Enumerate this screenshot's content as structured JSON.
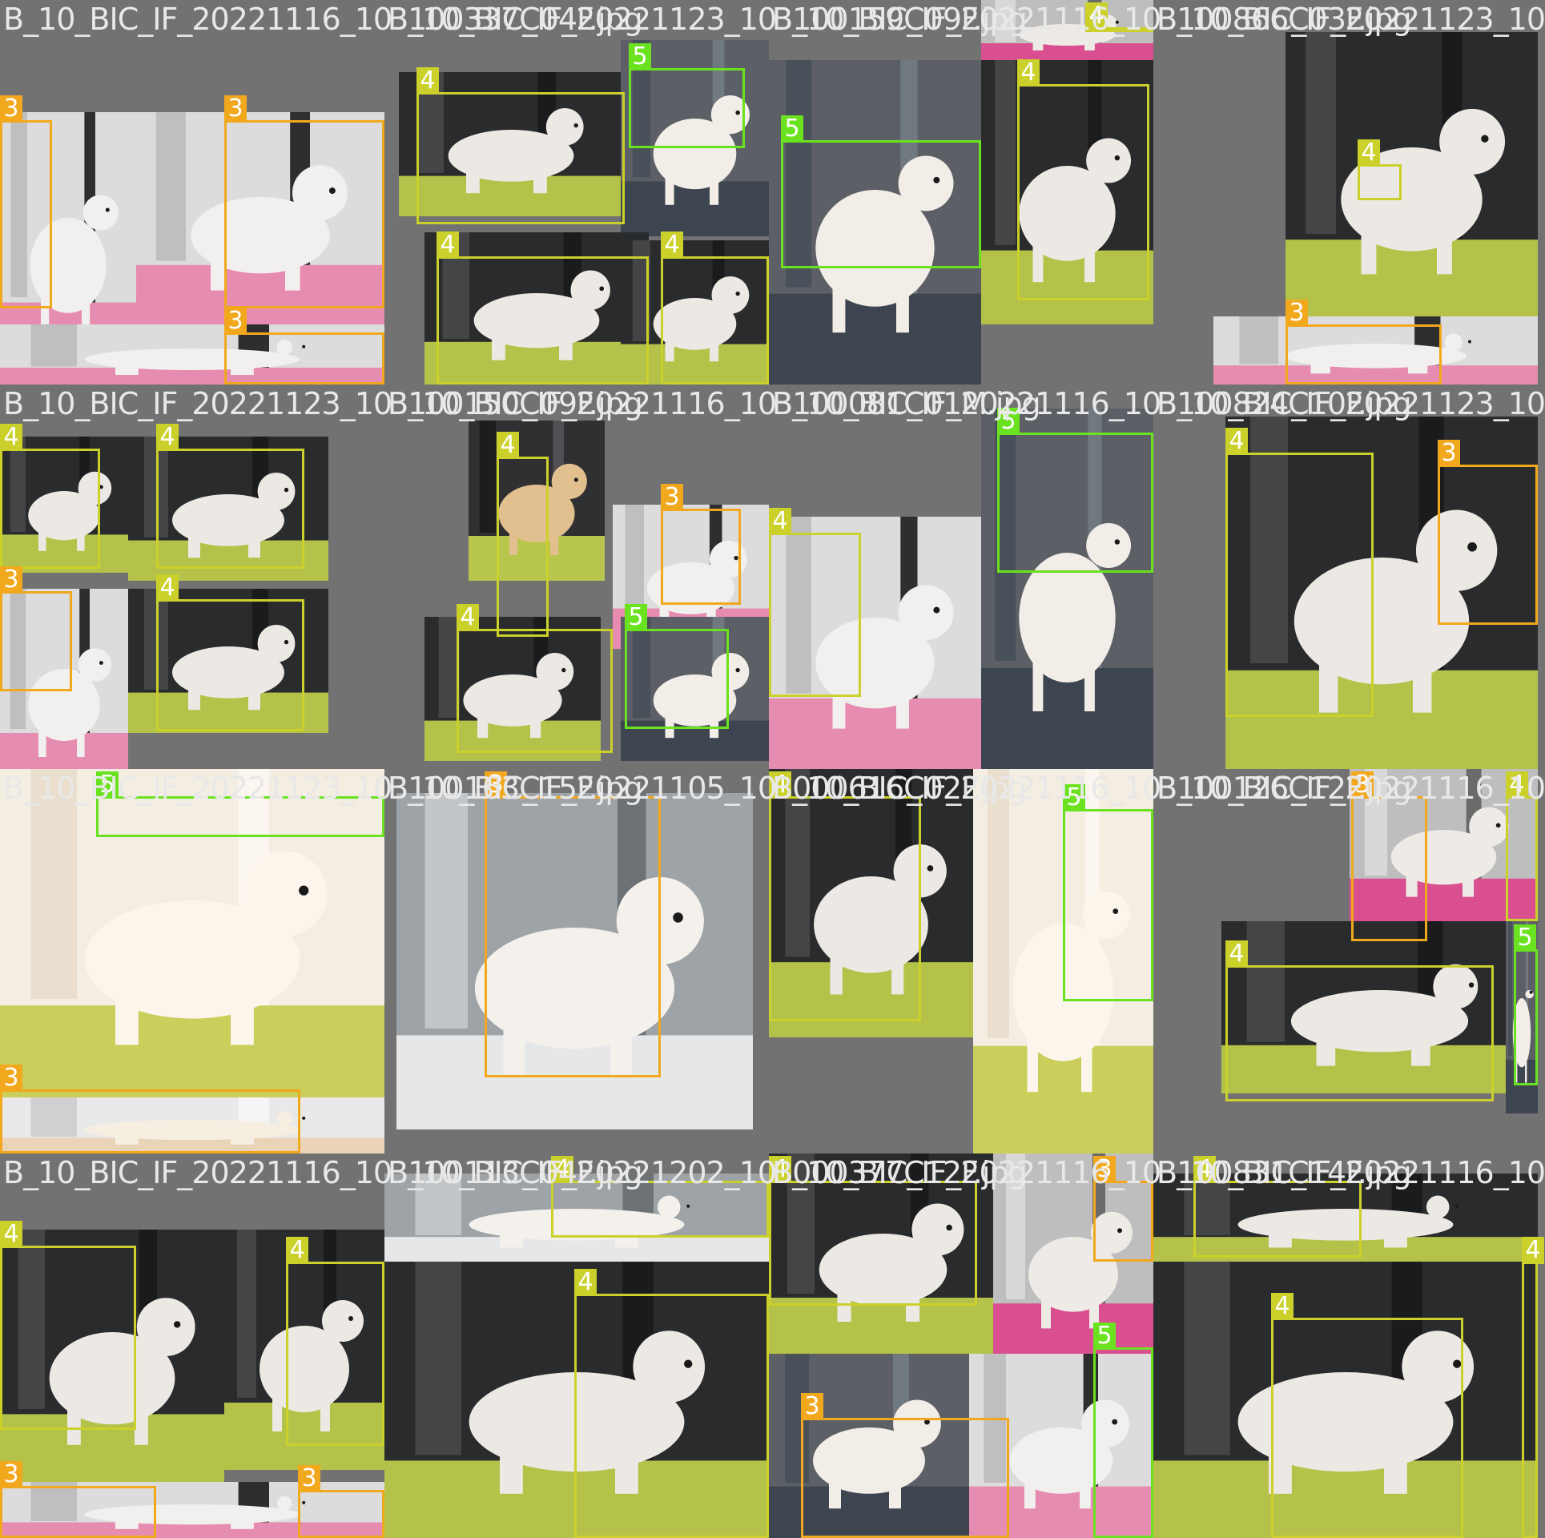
{
  "colors": {
    "background": "#727272",
    "class_3": "#f2a81d",
    "class_4": "#cbd12a",
    "class_5": "#6be21f",
    "label_text": "#e8e8e8"
  },
  "tiles": [
    {
      "filename": "B_10_BIC_IF_20221116_10",
      "photos": [
        {
          "scene": "white-pink"
        },
        {
          "scene": "white-pink"
        },
        {
          "scene": "white-pink"
        }
      ],
      "boxes": [
        {
          "cls": "3"
        },
        {
          "cls": "3"
        },
        {
          "cls": "3"
        }
      ]
    },
    {
      "filename": "B_10_BIC_IF_20221123_10",
      "overlay": "B100337C04F.jpg",
      "photos": [
        {
          "scene": "green-dark"
        },
        {
          "scene": "grey-coat"
        },
        {
          "scene": "green-dark"
        },
        {
          "scene": "green-dark"
        }
      ],
      "boxes": [
        {
          "cls": "4"
        },
        {
          "cls": "5"
        },
        {
          "cls": "4"
        },
        {
          "cls": "4"
        }
      ]
    },
    {
      "filename": "B_10_BIC_IF_20221116_10",
      "overlay": "B100159C09F.jpg",
      "photos": [
        {
          "scene": "grey-coat"
        },
        {
          "scene": "green-dark"
        },
        {
          "scene": "pink"
        }
      ],
      "boxes": [
        {
          "cls": "5"
        },
        {
          "cls": "4"
        },
        {
          "cls": "4"
        }
      ]
    },
    {
      "filename": "B_10_BIC_IF_20221123_10",
      "overlay": "B100866C03F.jpg",
      "photos": [
        {
          "scene": "green-dark"
        },
        {
          "scene": "white-pink"
        }
      ],
      "boxes": [
        {
          "cls": "4"
        },
        {
          "cls": "3"
        }
      ]
    },
    {
      "filename": "B_10_BIC_IF_20221123_10",
      "photos": [
        {
          "scene": "green-dark"
        },
        {
          "scene": "green-dark"
        },
        {
          "scene": "white-pink"
        },
        {
          "scene": "green-dark"
        }
      ],
      "boxes": [
        {
          "cls": "4"
        },
        {
          "cls": "4"
        },
        {
          "cls": "3"
        },
        {
          "cls": "4"
        }
      ]
    },
    {
      "filename": "B_10_BIC_IF_20221116_10",
      "overlay": "B100150C09F.jpg",
      "photos": [
        {
          "scene": "tan-green"
        },
        {
          "scene": "white-pink"
        },
        {
          "scene": "green-dark"
        },
        {
          "scene": "grey-coat"
        }
      ],
      "boxes": [
        {
          "cls": "4"
        },
        {
          "cls": "3"
        },
        {
          "cls": "4"
        },
        {
          "cls": "5"
        }
      ]
    },
    {
      "filename": "B_10_BIC_IF_20221116_10",
      "overlay": "B100081C01M.jpg",
      "photos": [
        {
          "scene": "white-pink"
        },
        {
          "scene": "grey-coat"
        }
      ],
      "boxes": [
        {
          "cls": "4"
        },
        {
          "cls": "5"
        }
      ]
    },
    {
      "filename": "B_10_BIC_IF_20221123_10",
      "overlay": "B100824C10F.jpg",
      "photos": [
        {
          "scene": "green-dark"
        },
        {
          "scene": "white-pink"
        }
      ],
      "boxes": [
        {
          "cls": "4"
        },
        {
          "cls": "3"
        }
      ]
    },
    {
      "filename": "B_10_BIC_IF_20221123_10",
      "photos": [
        {
          "scene": "closeup"
        },
        {
          "scene": "white"
        }
      ],
      "boxes": [
        {
          "cls": "5"
        },
        {
          "cls": "3"
        }
      ]
    },
    {
      "filename": "B_10_BIC_IF_20221105_10",
      "overlay": "B100163C15F.jpg",
      "photos": [
        {
          "scene": "table"
        }
      ],
      "boxes": [
        {
          "cls": "3"
        }
      ]
    },
    {
      "filename": "B_10_BIC_IF_20221116_10",
      "overlay": "B000616C02F.jpg",
      "photos": [
        {
          "scene": "green-dark"
        },
        {
          "scene": "closeup"
        }
      ],
      "boxes": [
        {
          "cls": "4"
        },
        {
          "cls": "5"
        }
      ]
    },
    {
      "filename": "B_10_BIC_IF_20221116_10",
      "overlay": "B100126C12F.jpg",
      "photos": [
        {
          "scene": "pink"
        },
        {
          "scene": "green-dark"
        },
        {
          "scene": "grey-coat"
        }
      ],
      "boxes": [
        {
          "cls": "3"
        },
        {
          "cls": "4"
        },
        {
          "cls": "4"
        },
        {
          "cls": "5"
        }
      ]
    },
    {
      "filename": "B_10_BIC_IF_20221116_10",
      "photos": [
        {
          "scene": "green-dark"
        },
        {
          "scene": "green-dark"
        },
        {
          "scene": "white-pink"
        }
      ],
      "boxes": [
        {
          "cls": "4"
        },
        {
          "cls": "4"
        },
        {
          "cls": "3"
        },
        {
          "cls": "3"
        }
      ]
    },
    {
      "filename": "B_10_BIC_IF_20221202_10",
      "overlay": "B100113C04F.jpg",
      "photos": [
        {
          "scene": "table"
        },
        {
          "scene": "green-dark"
        }
      ],
      "boxes": [
        {
          "cls": "4"
        },
        {
          "cls": "4"
        }
      ]
    },
    {
      "filename": "B_10_BIC_IF_20221116_10",
      "overlay": "B000377C12F.jpg",
      "photos": [
        {
          "scene": "green-dark"
        },
        {
          "scene": "pink"
        },
        {
          "scene": "grey-coat"
        },
        {
          "scene": "white-pink"
        }
      ],
      "boxes": [
        {
          "cls": "4"
        },
        {
          "cls": "3"
        },
        {
          "cls": "5"
        },
        {
          "cls": "3"
        }
      ]
    },
    {
      "filename": "B_10_BIC_IF_20221116_10",
      "overlay": "B100831C14F.jpg",
      "photos": [
        {
          "scene": "green-dark"
        },
        {
          "scene": "green-dark"
        }
      ],
      "boxes": [
        {
          "cls": "4"
        },
        {
          "cls": "4"
        },
        {
          "cls": "4"
        }
      ]
    }
  ]
}
